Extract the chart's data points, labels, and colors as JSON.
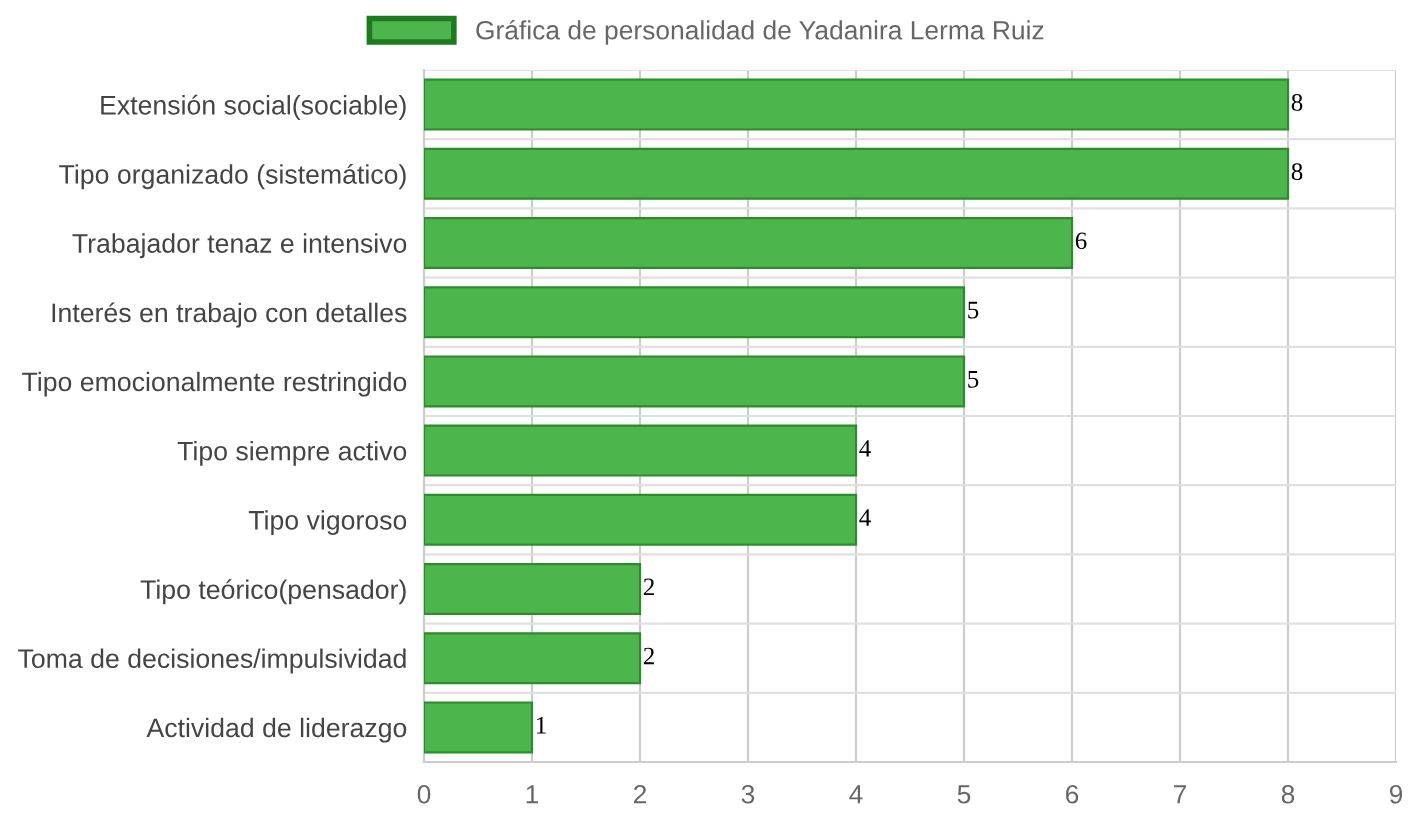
{
  "chart_data": {
    "type": "bar",
    "orientation": "horizontal",
    "categories": [
      "Extensión social(sociable)",
      "Tipo organizado (sistemático)",
      "Trabajador tenaz e intensivo",
      "Interés en trabajo con detalles",
      "Tipo emocionalmente restringido",
      "Tipo siempre activo",
      "Tipo vigoroso",
      "Tipo teórico(pensador)",
      "Toma de decisiones/impulsividad",
      "Actividad de liderazgo"
    ],
    "series": [
      {
        "name": "Gráfica de personalidad de Yadanira Lerma Ruiz",
        "color": "#4cb54c",
        "values": [
          8,
          8,
          6,
          5,
          5,
          4,
          4,
          2,
          2,
          1
        ]
      }
    ],
    "xlim": [
      0,
      9
    ],
    "xticks": [
      0,
      1,
      2,
      3,
      4,
      5,
      6,
      7,
      8,
      9
    ],
    "grid": true,
    "legend": "top",
    "data_labels": true
  }
}
